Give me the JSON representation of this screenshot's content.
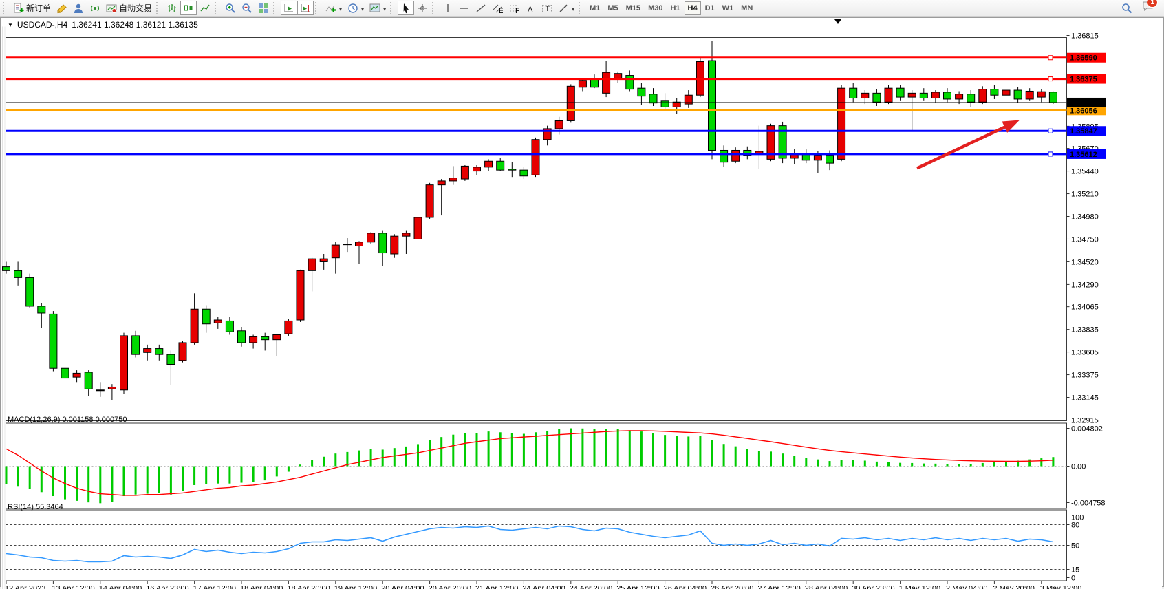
{
  "toolbar": {
    "new_order_label": "新订单",
    "autotrading_label": "自动交易",
    "timeframes": [
      "M1",
      "M5",
      "M15",
      "M30",
      "H1",
      "H4",
      "D1",
      "W1",
      "MN"
    ],
    "active_timeframe": "H4",
    "notification_badge": "1"
  },
  "chart_header": {
    "symbol": "USDCAD-,H4",
    "ohlc": "1.36241 1.36248 1.36121 1.36135"
  },
  "macd_panel": {
    "label": "MACD(12,26,9) 0.001158 0.000750"
  },
  "rsi_panel": {
    "label": "RSI(14) 55.3464"
  },
  "chart_data": {
    "type": "candlestick",
    "symbol": "USDCAD",
    "timeframe": "H4",
    "current_ohlc": {
      "open": 1.36241,
      "high": 1.36248,
      "low": 1.36121,
      "close": 1.36135
    },
    "up_color": "#e60000",
    "down_color": "#00d800",
    "price_axis_ticks": [
      "1.36815",
      "1.36585",
      "1.36355",
      "1.36125",
      "1.35895",
      "1.35670",
      "1.35440",
      "1.35210",
      "1.34980",
      "1.34750",
      "1.34520",
      "1.34290",
      "1.34065",
      "1.33835",
      "1.33605",
      "1.33375",
      "1.33145",
      "1.32915"
    ],
    "current_price_label": {
      "value": "1.36135",
      "bg": "#000000"
    },
    "horizontal_lines": [
      {
        "value": "1.36590",
        "color": "#ff0000",
        "handle": true
      },
      {
        "value": "1.36375",
        "color": "#ff0000",
        "handle": true
      },
      {
        "value": "1.36056",
        "color": "#ffa500",
        "handle": false
      },
      {
        "value": "1.35847",
        "color": "#0000ff",
        "handle": true
      },
      {
        "value": "1.35612",
        "color": "#0000ff",
        "handle": true
      }
    ],
    "x_labels": [
      "12 Apr 2023",
      "13 Apr 12:00",
      "14 Apr 04:00",
      "16 Apr 23:00",
      "17 Apr 12:00",
      "18 Apr 04:00",
      "18 Apr 20:00",
      "19 Apr 12:00",
      "20 Apr 04:00",
      "20 Apr 20:00",
      "21 Apr 12:00",
      "24 Apr 04:00",
      "24 Apr 20:00",
      "25 Apr 12:00",
      "26 Apr 04:00",
      "26 Apr 20:00",
      "27 Apr 12:00",
      "28 Apr 04:00",
      "30 Apr 23:00",
      "1 May 12:00",
      "2 May 04:00",
      "2 May 20:00",
      "3 May 12:00"
    ],
    "candles": [
      [
        1.3447,
        1.3452,
        1.344,
        1.3443
      ],
      [
        1.3443,
        1.3452,
        1.3428,
        1.3436
      ],
      [
        1.3436,
        1.344,
        1.3405,
        1.3407
      ],
      [
        1.3407,
        1.341,
        1.3385,
        1.34
      ],
      [
        1.3399,
        1.3402,
        1.3341,
        1.3344
      ],
      [
        1.3344,
        1.3348,
        1.333,
        1.3334
      ],
      [
        1.3335,
        1.3342,
        1.333,
        1.3339
      ],
      [
        1.334,
        1.3342,
        1.3316,
        1.3323
      ],
      [
        1.3322,
        1.333,
        1.3315,
        1.3322
      ],
      [
        1.3323,
        1.3328,
        1.3312,
        1.3325
      ],
      [
        1.3322,
        1.338,
        1.3318,
        1.3377
      ],
      [
        1.3377,
        1.3382,
        1.3355,
        1.3358
      ],
      [
        1.336,
        1.3368,
        1.3352,
        1.3364
      ],
      [
        1.3364,
        1.3368,
        1.3352,
        1.3358
      ],
      [
        1.3358,
        1.3362,
        1.3327,
        1.3348
      ],
      [
        1.3352,
        1.3372,
        1.335,
        1.337
      ],
      [
        1.337,
        1.342,
        1.3368,
        1.3404
      ],
      [
        1.3404,
        1.3408,
        1.338,
        1.3389
      ],
      [
        1.339,
        1.3396,
        1.3384,
        1.3393
      ],
      [
        1.3392,
        1.3396,
        1.3378,
        1.3381
      ],
      [
        1.3382,
        1.3386,
        1.3366,
        1.337
      ],
      [
        1.337,
        1.3378,
        1.3364,
        1.3376
      ],
      [
        1.3376,
        1.338,
        1.3362,
        1.3373
      ],
      [
        1.3373,
        1.3379,
        1.3356,
        1.3378
      ],
      [
        1.3379,
        1.3394,
        1.3377,
        1.3392
      ],
      [
        1.3393,
        1.3444,
        1.3391,
        1.3443
      ],
      [
        1.3443,
        1.3456,
        1.3422,
        1.3455
      ],
      [
        1.3452,
        1.346,
        1.3444,
        1.3455
      ],
      [
        1.3456,
        1.3472,
        1.344,
        1.3469
      ],
      [
        1.347,
        1.3476,
        1.3462,
        1.347
      ],
      [
        1.3468,
        1.3473,
        1.345,
        1.3472
      ],
      [
        1.3472,
        1.3482,
        1.347,
        1.3481
      ],
      [
        1.3481,
        1.3484,
        1.3448,
        1.3461
      ],
      [
        1.346,
        1.348,
        1.3456,
        1.3478
      ],
      [
        1.3478,
        1.3484,
        1.346,
        1.3481
      ],
      [
        1.3475,
        1.3498,
        1.3474,
        1.3497
      ],
      [
        1.3497,
        1.3532,
        1.3495,
        1.353
      ],
      [
        1.353,
        1.3536,
        1.3499,
        1.3534
      ],
      [
        1.3534,
        1.3549,
        1.353,
        1.3537
      ],
      [
        1.3536,
        1.355,
        1.3534,
        1.3549
      ],
      [
        1.3544,
        1.355,
        1.354,
        1.3548
      ],
      [
        1.3548,
        1.3556,
        1.3544,
        1.3554
      ],
      [
        1.3554,
        1.3557,
        1.3544,
        1.3545
      ],
      [
        1.3546,
        1.3553,
        1.3538,
        1.3545
      ],
      [
        1.3545,
        1.3548,
        1.3536,
        1.3539
      ],
      [
        1.354,
        1.3578,
        1.3538,
        1.3576
      ],
      [
        1.3576,
        1.359,
        1.357,
        1.3587
      ],
      [
        1.3587,
        1.3599,
        1.3581,
        1.3595
      ],
      [
        1.3595,
        1.3632,
        1.3593,
        1.363
      ],
      [
        1.3629,
        1.3638,
        1.3625,
        1.3636
      ],
      [
        1.3637,
        1.3642,
        1.3628,
        1.3629
      ],
      [
        1.3623,
        1.3656,
        1.3619,
        1.3644
      ],
      [
        1.3637,
        1.3645,
        1.3633,
        1.3643
      ],
      [
        1.3641,
        1.3646,
        1.3625,
        1.3627
      ],
      [
        1.3628,
        1.3633,
        1.3611,
        1.362
      ],
      [
        1.3622,
        1.3628,
        1.361,
        1.3613
      ],
      [
        1.3615,
        1.3623,
        1.3606,
        1.3609
      ],
      [
        1.3609,
        1.3618,
        1.3602,
        1.3614
      ],
      [
        1.3612,
        1.3626,
        1.3608,
        1.3621
      ],
      [
        1.3621,
        1.3659,
        1.3619,
        1.3655
      ],
      [
        1.3656,
        1.3676,
        1.3556,
        1.3565
      ],
      [
        1.3565,
        1.357,
        1.3548,
        1.3553
      ],
      [
        1.3554,
        1.3568,
        1.3552,
        1.3565
      ],
      [
        1.3565,
        1.3569,
        1.3556,
        1.356
      ],
      [
        1.3561,
        1.359,
        1.3546,
        1.3564
      ],
      [
        1.3556,
        1.3592,
        1.3554,
        1.359
      ],
      [
        1.359,
        1.3594,
        1.3552,
        1.3557
      ],
      [
        1.3557,
        1.3566,
        1.3551,
        1.3562
      ],
      [
        1.3562,
        1.3566,
        1.3552,
        1.3555
      ],
      [
        1.3555,
        1.3564,
        1.3542,
        1.356
      ],
      [
        1.356,
        1.3565,
        1.3545,
        1.3552
      ],
      [
        1.3556,
        1.3631,
        1.3554,
        1.3628
      ],
      [
        1.3628,
        1.3633,
        1.3614,
        1.3618
      ],
      [
        1.3618,
        1.3626,
        1.3612,
        1.3623
      ],
      [
        1.3623,
        1.3627,
        1.361,
        1.3614
      ],
      [
        1.3614,
        1.3631,
        1.3612,
        1.3628
      ],
      [
        1.3628,
        1.3631,
        1.3615,
        1.3619
      ],
      [
        1.3619,
        1.3626,
        1.3585,
        1.3623
      ],
      [
        1.3623,
        1.3628,
        1.3615,
        1.3618
      ],
      [
        1.3618,
        1.3626,
        1.3613,
        1.3624
      ],
      [
        1.3624,
        1.3628,
        1.3614,
        1.3617
      ],
      [
        1.3617,
        1.3625,
        1.3612,
        1.3622
      ],
      [
        1.3622,
        1.3626,
        1.3609,
        1.3614
      ],
      [
        1.3614,
        1.363,
        1.3612,
        1.3627
      ],
      [
        1.3627,
        1.3631,
        1.3617,
        1.3621
      ],
      [
        1.3621,
        1.3628,
        1.3616,
        1.3626
      ],
      [
        1.3626,
        1.3629,
        1.3613,
        1.3617
      ],
      [
        1.3617,
        1.3628,
        1.3615,
        1.3625
      ],
      [
        1.3619,
        1.3627,
        1.3614,
        1.36245
      ],
      [
        1.36241,
        1.36248,
        1.36121,
        1.36135
      ]
    ],
    "macd": {
      "params": "12,26,9",
      "main_value": 0.001158,
      "signal_value": 0.00075,
      "axis_ticks": [
        "0.004802",
        "0.00",
        "-0.004758"
      ],
      "color_histogram": "#00cc00",
      "color_signal": "#ff0000",
      "histogram": [
        -0.0023,
        -0.0026,
        -0.0029,
        -0.0033,
        -0.0038,
        -0.0042,
        -0.0044,
        -0.0046,
        -0.0047,
        -0.0045,
        -0.0038,
        -0.0036,
        -0.0035,
        -0.0034,
        -0.0036,
        -0.0031,
        -0.0024,
        -0.0023,
        -0.0022,
        -0.0022,
        -0.0021,
        -0.002,
        -0.0018,
        -0.0013,
        -0.0007,
        0.0002,
        0.0008,
        0.0012,
        0.0016,
        0.0018,
        0.002,
        0.0022,
        0.0021,
        0.0023,
        0.0025,
        0.0028,
        0.0033,
        0.0037,
        0.004,
        0.0042,
        0.0042,
        0.0044,
        0.0043,
        0.0042,
        0.0041,
        0.0043,
        0.0045,
        0.0047,
        0.0048,
        0.00478,
        0.00472,
        0.00475,
        0.0047,
        0.00456,
        0.0044,
        0.0042,
        0.00396,
        0.0038,
        0.00376,
        0.00382,
        0.0033,
        0.00282,
        0.00252,
        0.00222,
        0.00196,
        0.00185,
        0.0016,
        0.0013,
        0.00105,
        0.00086,
        0.00065,
        0.0008,
        0.00076,
        0.0007,
        0.00058,
        0.00052,
        0.00042,
        0.0004,
        0.00034,
        0.00032,
        0.00028,
        0.0003,
        0.00029,
        0.0004,
        0.0005,
        0.00062,
        0.0007,
        0.00086,
        0.001,
        0.00116
      ],
      "signal": [
        0.0022,
        0.0014,
        0.0004,
        -0.0006,
        -0.0015,
        -0.0022,
        -0.0028,
        -0.0032,
        -0.0035,
        -0.0036,
        -0.0037,
        -0.0037,
        -0.0036,
        -0.0036,
        -0.0035,
        -0.0034,
        -0.0032,
        -0.003,
        -0.0028,
        -0.0027,
        -0.0025,
        -0.0024,
        -0.0022,
        -0.002,
        -0.0017,
        -0.0014,
        -0.001,
        -0.0006,
        -0.0002,
        0.0002,
        0.0005,
        0.0008,
        0.0011,
        0.0013,
        0.0015,
        0.0017,
        0.002,
        0.0023,
        0.0026,
        0.0029,
        0.0031,
        0.0033,
        0.0035,
        0.0036,
        0.0037,
        0.0038,
        0.0039,
        0.004,
        0.0041,
        0.0042,
        0.0043,
        0.0044,
        0.00446,
        0.0045,
        0.0045,
        0.00447,
        0.00442,
        0.00435,
        0.00428,
        0.00422,
        0.0041,
        0.00392,
        0.00372,
        0.00352,
        0.0033,
        0.0031,
        0.00288,
        0.00265,
        0.00242,
        0.0022,
        0.002,
        0.00184,
        0.0017,
        0.00156,
        0.00142,
        0.00128,
        0.00115,
        0.00104,
        0.00094,
        0.00086,
        0.00079,
        0.00073,
        0.00068,
        0.00065,
        0.00063,
        0.00062,
        0.00062,
        0.00064,
        0.00068,
        0.00075
      ]
    },
    "rsi": {
      "period": 14,
      "value": 55.3464,
      "levels": [
        80,
        50,
        15
      ],
      "axis_ticks": [
        "100",
        "80",
        "50",
        "15",
        "0"
      ],
      "color": "#3399ff",
      "values": [
        38,
        36,
        33,
        32,
        28,
        27,
        28,
        26,
        26,
        27,
        35,
        33,
        34,
        33,
        31,
        36,
        44,
        41,
        43,
        40,
        38,
        40,
        39,
        41,
        45,
        53,
        55,
        55,
        58,
        57,
        59,
        61,
        56,
        62,
        66,
        70,
        74,
        76,
        75,
        77,
        76,
        78,
        73,
        72,
        74,
        76,
        74,
        78,
        77,
        73,
        71,
        75,
        74,
        69,
        66,
        63,
        61,
        63,
        65,
        71,
        53,
        50,
        52,
        50,
        52,
        57,
        51,
        53,
        50,
        52,
        49,
        60,
        59,
        61,
        58,
        60,
        57,
        60,
        58,
        61,
        58,
        60,
        57,
        60,
        58,
        60,
        56,
        59,
        58,
        55
      ]
    },
    "arrow_annotation": {
      "from": [
        1332,
        231
      ],
      "to": [
        1481,
        161
      ],
      "color": "#e32020"
    }
  }
}
